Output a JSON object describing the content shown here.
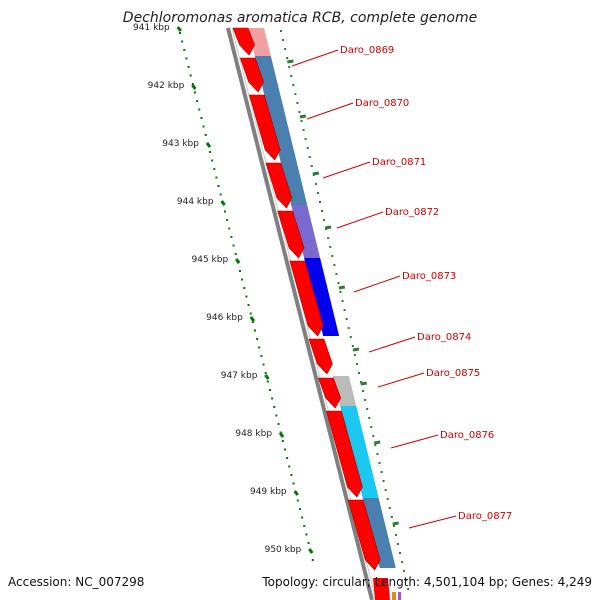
{
  "title": "Dechloromonas aromatica RCB, complete genome",
  "accession": "Accession: NC_007298",
  "topology": "Topology: circular; Length: 4,501,104 bp; Genes: 4,249",
  "ruler_labels": [
    "941 kbp",
    "942 kbp",
    "943 kbp",
    "944 kbp",
    "945 kbp",
    "946 kbp",
    "947 kbp",
    "948 kbp",
    "949 kbp",
    "950 kbp"
  ],
  "genes": [
    {
      "label": "Daro_0869",
      "strand": "reverse",
      "color": "#ff0000"
    },
    {
      "label": "Daro_0870",
      "strand": "reverse",
      "color": "#ff0000"
    },
    {
      "label": "Daro_0871",
      "strand": "reverse",
      "color": "#ff0000"
    },
    {
      "label": "Daro_0872",
      "strand": "reverse",
      "color": "#ff0000"
    },
    {
      "label": "Daro_0873",
      "strand": "reverse",
      "color": "#ff0000"
    },
    {
      "label": "Daro_0874",
      "strand": "reverse",
      "color": "#ff0000"
    },
    {
      "label": "Daro_0875",
      "strand": "reverse",
      "color": "#ff0000"
    },
    {
      "label": "Daro_0876",
      "strand": "reverse",
      "color": "#ff0000"
    },
    {
      "label": "Daro_0877",
      "strand": "reverse",
      "color": "#ff0000"
    }
  ],
  "colors": {
    "gene": "#ff0000",
    "backbone": "#808080",
    "ruler_ticks": "#007700",
    "gene_labels": "#cc0000",
    "cog_bars": [
      "#f0a0a0",
      "#4a80b0",
      "#7a6ad0",
      "#0000ee",
      "#bbbbbb",
      "#1ac8f0",
      "#4a80b0"
    ]
  }
}
